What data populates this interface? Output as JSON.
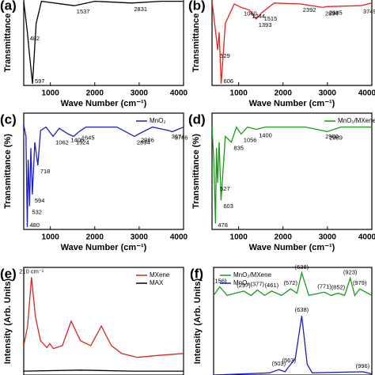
{
  "chart_data": [
    {
      "type": "line",
      "panel": "(a)",
      "xlabel": "Wave Number (cm⁻¹)",
      "ylabel": "Transmittance",
      "xlim": [
        400,
        4000
      ],
      "xticks": [
        1000,
        2000,
        3000,
        4000
      ],
      "ylim": [
        0,
        100
      ],
      "series": [
        {
          "color": "#000000",
          "x": [
            400,
            482,
            520,
            597,
            680,
            800,
            1537,
            2000,
            2831,
            3500,
            4000
          ],
          "values": [
            95,
            60,
            40,
            2,
            70,
            95,
            90,
            95,
            93,
            95,
            95
          ],
          "peaks": [
            482,
            597,
            1537,
            2831
          ]
        }
      ]
    },
    {
      "type": "line",
      "panel": "(b)",
      "xlabel": "Wave Number (cm⁻¹)",
      "ylabel": "Transmittance",
      "xlim": [
        400,
        4000
      ],
      "xticks": [
        1000,
        2000,
        3000,
        4000
      ],
      "ylim": [
        0,
        100
      ],
      "series": [
        {
          "color": "#e8231f",
          "x": [
            400,
            529,
            560,
            606,
            700,
            900,
            1060,
            1244,
            1393,
            1515,
            1800,
            2392,
            2894,
            2985,
            3749,
            4000
          ],
          "values": [
            95,
            40,
            60,
            2,
            70,
            92,
            88,
            85,
            75,
            82,
            93,
            92,
            88,
            89,
            90,
            93
          ],
          "peaks": [
            529,
            606,
            1060,
            1244,
            1393,
            1515,
            2392,
            2894,
            2985,
            3749
          ]
        }
      ]
    },
    {
      "type": "line",
      "panel": "(c)",
      "xlabel": "Wave Number (cm⁻¹)",
      "ylabel": "Transmittance (%)",
      "xlim": [
        400,
        4000
      ],
      "xticks": [
        1000,
        2000,
        3000,
        4000
      ],
      "ylim": [
        0,
        100
      ],
      "legend": "upper right",
      "series": [
        {
          "name": "MnO₂",
          "color": "#1c1ccc",
          "x": [
            400,
            450,
            480,
            500,
            532,
            560,
            594,
            650,
            718,
            780,
            900,
            1062,
            1200,
            1405,
            1524,
            1645,
            1800,
            2500,
            2894,
            2986,
            3300,
            3674,
            3746,
            4000
          ],
          "values": [
            90,
            80,
            2,
            60,
            20,
            70,
            30,
            75,
            55,
            85,
            88,
            80,
            87,
            82,
            80,
            84,
            88,
            88,
            80,
            82,
            88,
            85,
            84,
            88
          ],
          "peaks": [
            480,
            532,
            594,
            718,
            1062,
            1405,
            1524,
            1645,
            2894,
            2986,
            3674,
            3746
          ]
        }
      ]
    },
    {
      "type": "line",
      "panel": "(d)",
      "xlabel": "Wave Number (cm⁻¹)",
      "ylabel": "Transmittance (%)",
      "xlim": [
        400,
        4000
      ],
      "xticks": [
        1000,
        2000,
        3000,
        4000
      ],
      "ylim": [
        0,
        100
      ],
      "legend": "upper right",
      "series": [
        {
          "name": "MnO₂/MXene",
          "color": "#1a9a1a",
          "x": [
            400,
            440,
            478,
            500,
            527,
            560,
            603,
            700,
            835,
            950,
            1056,
            1200,
            1400,
            1600,
            2500,
            2900,
            2989,
            3300,
            4000
          ],
          "values": [
            88,
            60,
            5,
            70,
            40,
            75,
            25,
            80,
            75,
            88,
            82,
            88,
            86,
            88,
            88,
            85,
            84,
            88,
            88
          ],
          "peaks": [
            478,
            527,
            603,
            835,
            1056,
            1400,
            2900,
            2989
          ]
        }
      ]
    },
    {
      "type": "line",
      "panel": "(e)",
      "ylabel": "Intensity (Arb. Units)",
      "xlim": [
        180,
        800
      ],
      "ylim": [
        0,
        110
      ],
      "legend": "upper right",
      "series": [
        {
          "name": "MXene",
          "color": "#d9261c",
          "x": [
            180,
            195,
            210,
            225,
            245,
            270,
            281,
            295,
            330,
            364,
            400,
            440,
            481,
            520,
            560,
            620,
            700,
            800
          ],
          "values": [
            30,
            50,
            100,
            60,
            35,
            28,
            32,
            27,
            30,
            55,
            35,
            30,
            50,
            30,
            22,
            18,
            20,
            22
          ],
          "peaks": [
            {
              "value": 210,
              "label": "210 cm⁻¹"
            }
          ]
        },
        {
          "name": "MAX",
          "color": "#000000",
          "x": [
            180,
            400,
            600,
            800
          ],
          "values": [
            4,
            5,
            4,
            4
          ]
        }
      ]
    },
    {
      "type": "line",
      "panel": "(f)",
      "ylabel": "Intensity (Arb. Units)",
      "xlim": [
        120,
        1050
      ],
      "ylim": [
        0,
        100
      ],
      "legend": "upper left",
      "series": [
        {
          "name": "MnO₂/MXene",
          "color": "#1a9a1a",
          "x": [
            120,
            156,
            200,
            297,
            340,
            377,
            420,
            461,
            520,
            572,
            610,
            638,
            680,
            771,
            810,
            852,
            890,
            923,
            950,
            979,
            1050
          ],
          "values": [
            74,
            82,
            74,
            78,
            74,
            79,
            74,
            78,
            74,
            80,
            76,
            95,
            74,
            77,
            74,
            76,
            74,
            90,
            74,
            80,
            74
          ],
          "peaks": [
            {
              "value": 156,
              "label": "(156)"
            },
            {
              "value": 297,
              "label": "(297)"
            },
            {
              "value": 377,
              "label": "(377)"
            },
            {
              "value": 461,
              "label": "(461)"
            },
            {
              "value": 572,
              "label": "(572)"
            },
            {
              "value": 638,
              "label": "(638)"
            },
            {
              "value": 771,
              "label": "(771)"
            },
            {
              "value": 852,
              "label": "(852)"
            },
            {
              "value": 923,
              "label": "(923)"
            },
            {
              "value": 979,
              "label": "(979)"
            }
          ]
        },
        {
          "name": "MnO₂",
          "color": "#1c1ccc",
          "x": [
            120,
            450,
            503,
            540,
            563,
            600,
            638,
            670,
            700,
            996,
            1050
          ],
          "values": [
            0,
            2,
            5,
            3,
            8,
            15,
            55,
            10,
            2,
            3,
            1
          ],
          "peaks": [
            {
              "value": 503,
              "label": "(503)"
            },
            {
              "value": 563,
              "label": "(563)"
            },
            {
              "value": 638,
              "label": "(638)"
            },
            {
              "value": 996,
              "label": "(996)"
            }
          ]
        }
      ]
    }
  ]
}
